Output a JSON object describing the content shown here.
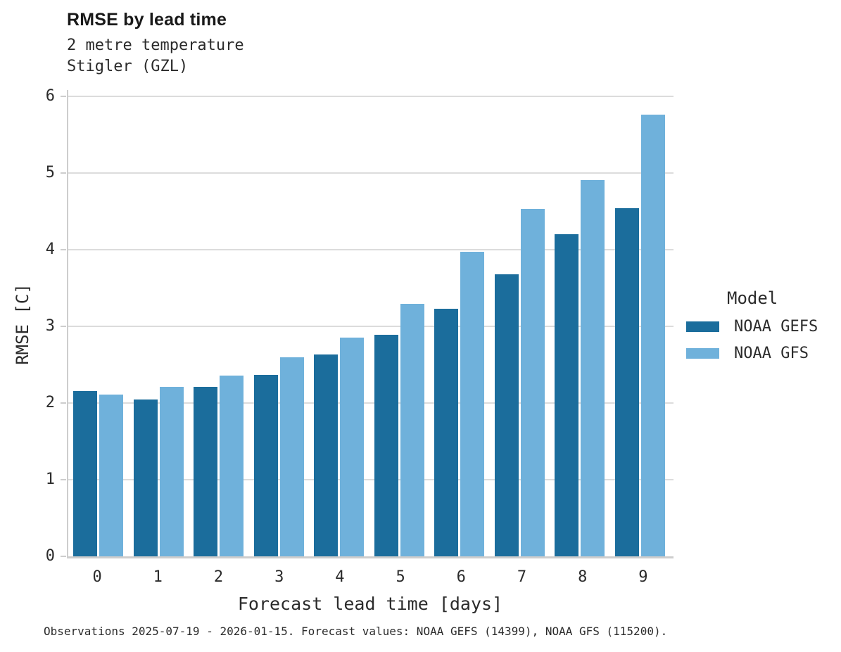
{
  "header": {
    "title": "RMSE by lead time",
    "subtitle_line1": "2 metre temperature",
    "subtitle_line2": "Stigler (GZL)"
  },
  "legend": {
    "title": "Model",
    "items": [
      {
        "label": "NOAA GEFS",
        "color": "#1b6d9c"
      },
      {
        "label": "NOAA GFS",
        "color": "#6fb1db"
      }
    ]
  },
  "footer": {
    "text": "Observations 2025-07-19 - 2026-01-15. Forecast values: NOAA GEFS (14399), NOAA GFS (115200)."
  },
  "colors": {
    "gefs_bar": "#1b6d9c",
    "gfs_bar": "#6fb1db",
    "gridline": "#dcdcdc",
    "axis_line": "#cdcdcd",
    "text": "#2b2b2b"
  },
  "chart_data": {
    "type": "bar",
    "title": "RMSE by lead time",
    "subtitle": [
      "2 metre temperature",
      "Stigler (GZL)"
    ],
    "categories": [
      "0",
      "1",
      "2",
      "3",
      "4",
      "5",
      "6",
      "7",
      "8",
      "9"
    ],
    "series": [
      {
        "name": "NOAA GEFS",
        "color": "#1b6d9c",
        "values": [
          2.16,
          2.05,
          2.21,
          2.37,
          2.63,
          2.89,
          3.23,
          3.68,
          4.2,
          4.54
        ]
      },
      {
        "name": "NOAA GFS",
        "color": "#6fb1db",
        "values": [
          2.11,
          2.21,
          2.36,
          2.6,
          2.85,
          3.29,
          3.97,
          4.53,
          4.91,
          5.76
        ]
      }
    ],
    "xlabel": "Forecast lead time [days]",
    "ylabel": "RMSE [C]",
    "ylim": [
      0,
      6
    ],
    "yticks": [
      0,
      1,
      2,
      3,
      4,
      5,
      6
    ],
    "grid": true,
    "legend_position": "right",
    "legend_title": "Model"
  }
}
